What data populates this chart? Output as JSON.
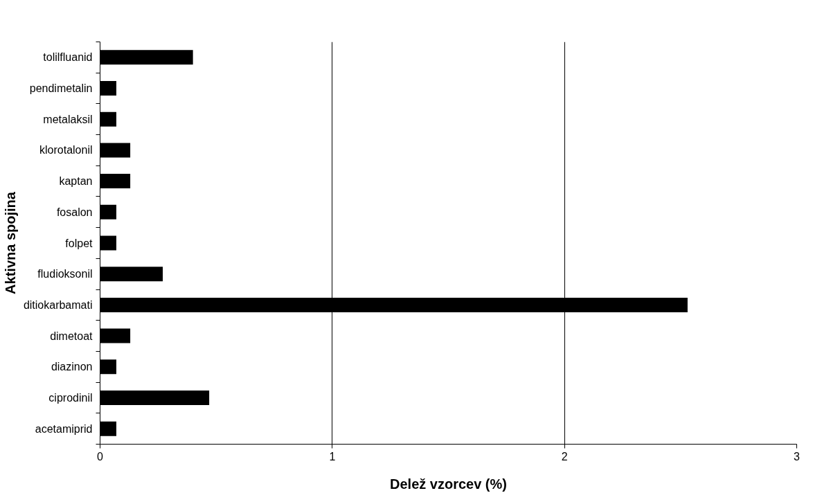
{
  "chart_data": {
    "type": "bar",
    "orientation": "horizontal",
    "xlabel": "Delež vzorcev (%)",
    "ylabel": "Aktivna spojina",
    "categories": [
      "tolilfluanid",
      "pendimetalin",
      "metalaksil",
      "klorotalonil",
      "kaptan",
      "fosalon",
      "folpet",
      "fludioksonil",
      "ditiokarbamati",
      "dimetoat",
      "diazinon",
      "ciprodinil",
      "acetamiprid"
    ],
    "values": [
      0.4,
      0.07,
      0.07,
      0.13,
      0.13,
      0.07,
      0.07,
      0.27,
      2.53,
      0.13,
      0.07,
      0.47,
      0.07
    ],
    "color": "#000000",
    "xlim": [
      0,
      3
    ],
    "xticks": [
      0,
      1,
      2,
      3
    ],
    "grid": "x"
  }
}
